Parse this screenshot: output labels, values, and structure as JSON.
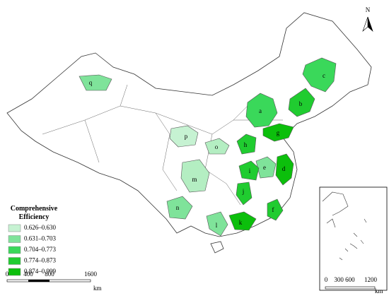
{
  "north": "N",
  "legend": {
    "title": "Comprehensive Efficiency",
    "classes": [
      {
        "label": "0.626–0.630",
        "color": "#c6f2d2"
      },
      {
        "label": "0.631–0.703",
        "color": "#7fe39a"
      },
      {
        "label": "0.704–0.773",
        "color": "#3ad85a"
      },
      {
        "label": "0.774–0.873",
        "color": "#20cc30"
      },
      {
        "label": "0.874–0.999",
        "color": "#0cbf0c"
      }
    ]
  },
  "regions": [
    {
      "label": "a",
      "color": "#3ad85a"
    },
    {
      "label": "b",
      "color": "#20cc30"
    },
    {
      "label": "c",
      "color": "#3ad85a"
    },
    {
      "label": "d",
      "color": "#0cbf0c"
    },
    {
      "label": "e",
      "color": "#7fe39a"
    },
    {
      "label": "f",
      "color": "#20cc30"
    },
    {
      "label": "g",
      "color": "#0cbf0c"
    },
    {
      "label": "h",
      "color": "#20cc30"
    },
    {
      "label": "i",
      "color": "#20cc30"
    },
    {
      "label": "j",
      "color": "#20cc30"
    },
    {
      "label": "k",
      "color": "#0cbf0c"
    },
    {
      "label": "l",
      "color": "#7fe39a"
    },
    {
      "label": "m",
      "color": "#b4eec2"
    },
    {
      "label": "n",
      "color": "#7fe39a"
    },
    {
      "label": "o",
      "color": "#b4eec2"
    },
    {
      "label": "p",
      "color": "#c6f2d2"
    },
    {
      "label": "q",
      "color": "#7fe39a"
    }
  ],
  "scale_bar": {
    "labels": [
      "0",
      "400",
      "800",
      "1600"
    ],
    "unit": "km"
  },
  "inset_scale_bar": {
    "labels": [
      "0",
      "300 600",
      "1200"
    ],
    "unit": "km"
  }
}
